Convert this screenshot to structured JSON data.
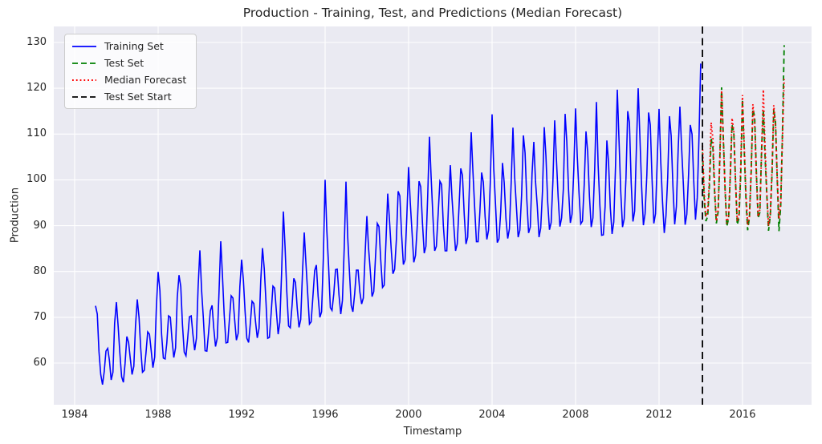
{
  "title": "Production - Training, Test, and Predictions (Median Forecast)",
  "axes": {
    "xlabel": "Timestamp",
    "ylabel": "Production"
  },
  "legend": {
    "items": [
      {
        "label": "Training Set",
        "color": "#0000ff",
        "style": "solid"
      },
      {
        "label": "Test Set",
        "color": "#008000",
        "style": "dashed"
      },
      {
        "label": "Median Forecast",
        "color": "#ff0000",
        "style": "dotted"
      },
      {
        "label": "Test Set Start",
        "color": "#000000",
        "style": "dashed"
      }
    ]
  },
  "colors": {
    "figure_background": "#ffffff",
    "plot_background": "#eaeaf2",
    "grid": "#ffffff",
    "text": "#262626",
    "training": "#0000ff",
    "test": "#008000",
    "forecast": "#ff0000",
    "test_start_marker": "#000000"
  },
  "chart_data": {
    "type": "line",
    "title": "Production - Training, Test, and Predictions (Median Forecast)",
    "xlabel": "Timestamp",
    "ylabel": "Production",
    "frequency": "monthly",
    "grid": true,
    "legend_position": "upper left",
    "xlim": [
      1983.0,
      2019.31
    ],
    "ylim": [
      50.9,
      133.5
    ],
    "x_ticks": [
      1984,
      1988,
      1992,
      1996,
      2000,
      2004,
      2008,
      2012,
      2016
    ],
    "y_ticks": [
      60,
      70,
      80,
      90,
      100,
      110,
      120,
      130
    ],
    "test_set_start_x": 2014.083,
    "test_set_start_color": "#000000",
    "series": [
      {
        "id": "training-set",
        "name": "Training Set",
        "color": "#0000ff",
        "style": "solid",
        "line_width": 1.6,
        "x_start": 1985.0,
        "values": [
          72.5,
          70.7,
          62.5,
          57.5,
          55.3,
          58.1,
          62.6,
          63.2,
          60.6,
          56.3,
          58.0,
          68.7,
          73.3,
          68.0,
          62.2,
          57.0,
          55.8,
          59.9,
          65.8,
          64.5,
          61.0,
          57.5,
          59.3,
          68.1,
          73.9,
          70.0,
          63.2,
          58.0,
          58.4,
          62.1,
          66.8,
          66.3,
          62.8,
          59.0,
          61.3,
          72.2,
          79.9,
          75.8,
          66.3,
          61.1,
          60.9,
          64.4,
          70.3,
          70.0,
          65.1,
          61.2,
          63.3,
          74.3,
          79.2,
          76.7,
          68.4,
          62.4,
          61.6,
          65.4,
          70.1,
          70.3,
          66.3,
          62.8,
          65.4,
          76.6,
          84.6,
          75.7,
          69.9,
          62.7,
          62.6,
          66.6,
          71.4,
          72.6,
          67.6,
          63.6,
          65.5,
          75.3,
          86.6,
          78.8,
          70.5,
          64.4,
          64.5,
          69.5,
          74.7,
          74.2,
          69.5,
          65.0,
          66.5,
          76.7,
          82.6,
          78.1,
          71.3,
          65.4,
          64.5,
          68.6,
          73.5,
          73.0,
          69.1,
          65.5,
          67.6,
          77.9,
          85.1,
          80.6,
          73.5,
          65.4,
          65.6,
          70.9,
          76.8,
          76.4,
          71.3,
          66.3,
          68.9,
          79.6,
          93.1,
          85.4,
          75.5,
          68.1,
          67.7,
          72.5,
          78.5,
          77.6,
          71.9,
          67.8,
          69.5,
          79.6,
          88.5,
          81.9,
          75.2,
          68.5,
          69.0,
          74.5,
          80.2,
          81.4,
          74.6,
          70.0,
          71.2,
          82.9,
          100.0,
          89.1,
          81.3,
          72.1,
          71.5,
          75.1,
          80.4,
          80.5,
          74.9,
          70.7,
          73.7,
          85.1,
          99.6,
          87.7,
          80.0,
          72.6,
          71.2,
          75.1,
          80.3,
          80.3,
          75.5,
          72.9,
          74.2,
          83.7,
          92.1,
          85.2,
          80.1,
          74.5,
          75.6,
          83.2,
          90.5,
          89.8,
          82.5,
          76.5,
          77.0,
          86.5,
          97.0,
          91.5,
          85.0,
          79.5,
          80.5,
          87.0,
          97.5,
          96.5,
          88.0,
          81.5,
          82.5,
          92.0,
          102.8,
          95.0,
          88.5,
          82.0,
          83.5,
          90.0,
          99.7,
          98.5,
          90.5,
          84.0,
          85.5,
          96.5,
          109.4,
          100.5,
          92.0,
          84.5,
          85.5,
          92.5,
          99.7,
          99.0,
          90.0,
          84.5,
          84.5,
          95.0,
          103.2,
          96.0,
          90.0,
          84.5,
          86.0,
          94.0,
          102.5,
          101.0,
          92.5,
          86.0,
          87.5,
          98.5,
          110.4,
          102.0,
          94.0,
          86.5,
          86.5,
          93.0,
          101.6,
          99.5,
          92.0,
          87.0,
          89.0,
          99.5,
          114.3,
          102.4,
          94.6,
          86.3,
          87.1,
          93.2,
          103.7,
          99.4,
          91.5,
          87.2,
          89.3,
          99.4,
          111.4,
          100.7,
          94.2,
          87.5,
          89.0,
          96.7,
          109.7,
          105.9,
          95.6,
          88.4,
          89.7,
          101.4,
          108.3,
          99.7,
          94.3,
          87.5,
          89.5,
          97.5,
          111.5,
          105.2,
          95.1,
          89.1,
          90.7,
          99.8,
          113.0,
          104.7,
          96.3,
          89.8,
          91.7,
          98.0,
          114.4,
          108.3,
          97.7,
          90.6,
          92.5,
          102.2,
          115.6,
          105.2,
          97.2,
          90.4,
          91.0,
          99.0,
          110.6,
          106.1,
          96.4,
          89.7,
          91.7,
          102.1,
          117.0,
          103.3,
          94.4,
          87.9,
          88.0,
          94.1,
          108.6,
          103.8,
          93.9,
          88.2,
          90.8,
          103.1,
          119.7,
          108.8,
          97.4,
          89.7,
          91.5,
          100.4,
          115.0,
          112.5,
          99.4,
          90.9,
          93.2,
          107.0,
          120.0,
          109.6,
          98.5,
          90.1,
          92.6,
          101.1,
          114.7,
          112.0,
          100.1,
          90.5,
          92.6,
          104.5,
          115.5,
          104.1,
          95.3,
          88.4,
          92.1,
          100.6,
          113.9,
          109.6,
          98.6,
          90.3,
          94.2,
          106.5,
          116.0,
          107.1,
          99.0,
          90.2,
          92.5,
          101.2,
          112.0,
          110.0,
          99.5,
          91.3,
          96.1,
          109.6,
          125.4
        ]
      },
      {
        "id": "test-set",
        "name": "Test Set",
        "color": "#008000",
        "style": "dashed",
        "line_width": 1.8,
        "x_start": 2014.083,
        "values": [
          106.0,
          95.5,
          91.0,
          92.0,
          99.0,
          109.0,
          107.0,
          97.0,
          90.5,
          93.0,
          105.5,
          120.2,
          109.3,
          97.9,
          89.8,
          91.5,
          101.0,
          112.0,
          110.5,
          99.7,
          90.2,
          91.7,
          101.4,
          117.6,
          106.6,
          95.6,
          89.0,
          91.8,
          101.9,
          115.5,
          113.8,
          101.5,
          91.6,
          92.9,
          107.0,
          115.3,
          104.9,
          96.5,
          88.9,
          92.2,
          101.5,
          115.4,
          112.5,
          99.8,
          88.8,
          94.4,
          110.9,
          129.4
        ]
      },
      {
        "id": "median-forecast",
        "name": "Median Forecast",
        "color": "#ff0000",
        "style": "dotted",
        "line_width": 1.9,
        "x_start": 2014.083,
        "values": [
          107.5,
          97.0,
          92.0,
          93.0,
          100.5,
          112.5,
          109.0,
          98.0,
          91.0,
          93.5,
          104.5,
          119.5,
          108.5,
          97.5,
          90.5,
          92.0,
          101.5,
          113.5,
          110.8,
          99.5,
          91.0,
          92.5,
          103.0,
          118.5,
          107.5,
          96.8,
          90.2,
          92.0,
          102.0,
          116.5,
          112.5,
          100.5,
          92.0,
          93.5,
          106.0,
          119.7,
          107.0,
          97.0,
          90.0,
          92.5,
          102.5,
          116.3,
          112.0,
          100.0,
          91.5,
          95.0,
          109.5,
          122.0
        ]
      }
    ]
  }
}
